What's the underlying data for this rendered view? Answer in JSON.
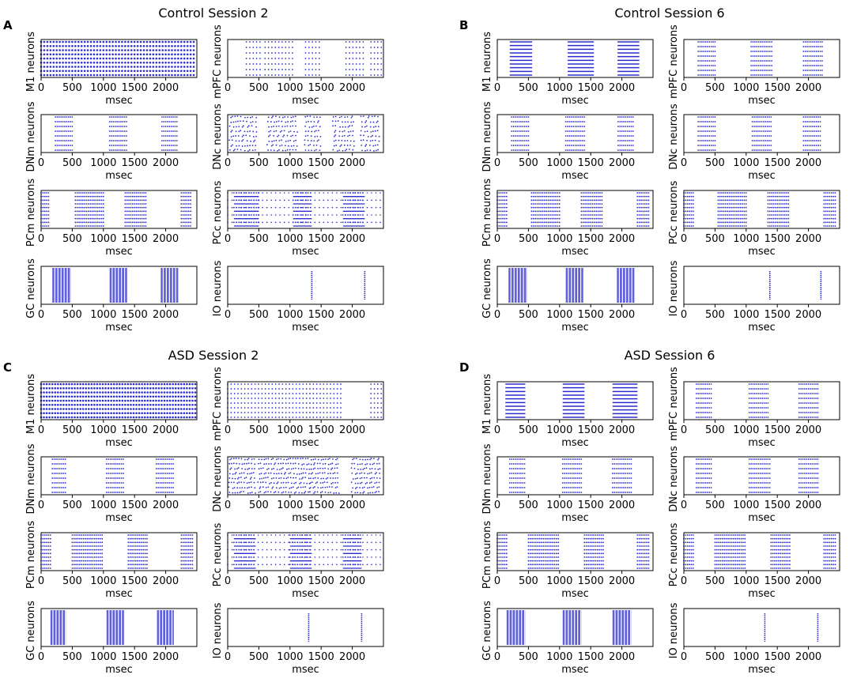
{
  "figure": {
    "panels": [
      {
        "letter": "A",
        "title": "Control Session 2"
      },
      {
        "letter": "B",
        "title": "Control Session 6"
      },
      {
        "letter": "C",
        "title": "ASD Session 2"
      },
      {
        "letter": "D",
        "title": "ASD Session 6"
      }
    ],
    "spike_color": "#2b2bcf"
  },
  "chart_data": [
    {
      "panel": "A",
      "title": "Control Session 2",
      "type": "raster",
      "xlabel": "msec",
      "xlim": [
        0,
        2500
      ],
      "xticks": [
        0,
        500,
        1000,
        1500,
        2000
      ],
      "subplots": [
        {
          "ylabel": "M1 neurons",
          "rows": 9,
          "mode": "dense",
          "dx": 50,
          "bursts": [
            [
              0,
              2480
            ]
          ]
        },
        {
          "ylabel": "mPFC neurons",
          "rows": 7,
          "mode": "dots",
          "dx": 55,
          "bursts": [
            [
              300,
              550
            ],
            [
              600,
              1050
            ],
            [
              1250,
              1500
            ],
            [
              1900,
              2200
            ],
            [
              2300,
              2480
            ]
          ]
        },
        {
          "ylabel": "DNm neurons",
          "rows": 8,
          "mode": "dots",
          "dx": 30,
          "bursts": [
            [
              230,
              500
            ],
            [
              1100,
              1380
            ],
            [
              1940,
              2200
            ]
          ]
        },
        {
          "ylabel": "DNc neurons",
          "rows": 8,
          "mode": "scatter",
          "dx": 45,
          "bursts": [
            [
              40,
              450
            ],
            [
              650,
              1100
            ],
            [
              1250,
              1500
            ],
            [
              1700,
              2050
            ],
            [
              2150,
              2450
            ]
          ]
        },
        {
          "ylabel": "PCm neurons",
          "rows": 10,
          "mode": "dots",
          "dx": 30,
          "bursts": [
            [
              0,
              130
            ],
            [
              550,
              1000
            ],
            [
              1350,
              1700
            ],
            [
              2250,
              2400
            ]
          ]
        },
        {
          "ylabel": "PCc neurons",
          "rows": 10,
          "mode": "mixed",
          "dx": 40,
          "bursts": [
            [
              100,
              500
            ],
            [
              1050,
              1350
            ],
            [
              1850,
              2200
            ]
          ]
        },
        {
          "ylabel": "GC neurons",
          "rows": 1,
          "mode": "bars",
          "bursts": [
            [
              180,
              480
            ],
            [
              1100,
              1380
            ],
            [
              1920,
              2200
            ]
          ]
        },
        {
          "ylabel": "IO neurons",
          "rows": 1,
          "mode": "vlines",
          "lines": [
            1350,
            2200
          ]
        }
      ]
    },
    {
      "panel": "B",
      "title": "Control Session 6",
      "type": "raster",
      "xlabel": "msec",
      "xlim": [
        0,
        2500
      ],
      "xticks": [
        0,
        500,
        1000,
        1500,
        2000
      ],
      "subplots": [
        {
          "ylabel": "M1 neurons",
          "rows": 10,
          "mode": "lines",
          "bursts": [
            [
              200,
              560
            ],
            [
              1130,
              1550
            ],
            [
              1930,
              2280
            ]
          ]
        },
        {
          "ylabel": "mPFC neurons",
          "rows": 8,
          "mode": "dots",
          "dx": 30,
          "bursts": [
            [
              230,
              500
            ],
            [
              1080,
              1420
            ],
            [
              1920,
              2220
            ]
          ]
        },
        {
          "ylabel": "DNm neurons",
          "rows": 8,
          "mode": "dots",
          "dx": 30,
          "bursts": [
            [
              230,
              500
            ],
            [
              1100,
              1400
            ],
            [
              1940,
              2200
            ]
          ]
        },
        {
          "ylabel": "DNc neurons",
          "rows": 8,
          "mode": "dots",
          "dx": 30,
          "bursts": [
            [
              230,
              500
            ],
            [
              1100,
              1420
            ],
            [
              1920,
              2200
            ]
          ]
        },
        {
          "ylabel": "PCm neurons",
          "rows": 10,
          "mode": "dots",
          "dx": 30,
          "bursts": [
            [
              0,
              150
            ],
            [
              550,
              1000
            ],
            [
              1350,
              1700
            ],
            [
              2250,
              2450
            ]
          ]
        },
        {
          "ylabel": "PCc neurons",
          "rows": 10,
          "mode": "dots",
          "dx": 30,
          "bursts": [
            [
              0,
              150
            ],
            [
              550,
              1000
            ],
            [
              1350,
              1700
            ],
            [
              2250,
              2450
            ]
          ]
        },
        {
          "ylabel": "GC neurons",
          "rows": 1,
          "mode": "bars",
          "bursts": [
            [
              180,
              480
            ],
            [
              1100,
              1380
            ],
            [
              1920,
              2200
            ]
          ]
        },
        {
          "ylabel": "IO neurons",
          "rows": 1,
          "mode": "vlines",
          "lines": [
            1380,
            2200
          ]
        }
      ]
    },
    {
      "panel": "C",
      "title": "ASD Session 2",
      "type": "raster",
      "xlabel": "msec",
      "xlim": [
        0,
        2500
      ],
      "xticks": [
        0,
        500,
        1000,
        1500,
        2000
      ],
      "subplots": [
        {
          "ylabel": "M1 neurons",
          "rows": 9,
          "mode": "dense",
          "dx": 45,
          "bursts": [
            [
              0,
              2480
            ]
          ]
        },
        {
          "ylabel": "mPFC neurons",
          "rows": 8,
          "mode": "dots",
          "dx": 55,
          "bursts": [
            [
              0,
              1850
            ],
            [
              2300,
              2480
            ]
          ]
        },
        {
          "ylabel": "DNm neurons",
          "rows": 8,
          "mode": "dots",
          "dx": 30,
          "bursts": [
            [
              180,
              400
            ],
            [
              1050,
              1330
            ],
            [
              1850,
              2130
            ]
          ]
        },
        {
          "ylabel": "DNc neurons",
          "rows": 8,
          "mode": "scatter",
          "dx": 40,
          "bursts": [
            [
              30,
              450
            ],
            [
              500,
              1300
            ],
            [
              1330,
              1800
            ],
            [
              2000,
              2450
            ]
          ]
        },
        {
          "ylabel": "PCm neurons",
          "rows": 10,
          "mode": "dots",
          "dx": 30,
          "bursts": [
            [
              0,
              150
            ],
            [
              500,
              1000
            ],
            [
              1400,
              1700
            ],
            [
              2250,
              2450
            ]
          ]
        },
        {
          "ylabel": "PCc neurons",
          "rows": 10,
          "mode": "mixed",
          "dx": 40,
          "bursts": [
            [
              100,
              450
            ],
            [
              1000,
              1350
            ],
            [
              1850,
              2150
            ]
          ]
        },
        {
          "ylabel": "GC neurons",
          "rows": 1,
          "mode": "bars",
          "bursts": [
            [
              150,
              400
            ],
            [
              1050,
              1330
            ],
            [
              1860,
              2130
            ]
          ]
        },
        {
          "ylabel": "IO neurons",
          "rows": 1,
          "mode": "vlines",
          "lines": [
            1300,
            2150
          ]
        }
      ]
    },
    {
      "panel": "D",
      "title": "ASD Session 6",
      "type": "raster",
      "xlabel": "msec",
      "xlim": [
        0,
        2500
      ],
      "xticks": [
        0,
        500,
        1000,
        1500,
        2000
      ],
      "subplots": [
        {
          "ylabel": "M1 neurons",
          "rows": 10,
          "mode": "lines",
          "bursts": [
            [
              130,
              450
            ],
            [
              1050,
              1400
            ],
            [
              1850,
              2250
            ]
          ]
        },
        {
          "ylabel": "mPFC neurons",
          "rows": 8,
          "mode": "dots",
          "dx": 30,
          "bursts": [
            [
              200,
              450
            ],
            [
              1050,
              1350
            ],
            [
              1850,
              2150
            ]
          ]
        },
        {
          "ylabel": "DNm neurons",
          "rows": 8,
          "mode": "dots",
          "dx": 30,
          "bursts": [
            [
              200,
              450
            ],
            [
              1050,
              1350
            ],
            [
              1850,
              2150
            ]
          ]
        },
        {
          "ylabel": "DNc neurons",
          "rows": 8,
          "mode": "dots",
          "dx": 30,
          "bursts": [
            [
              200,
              450
            ],
            [
              1050,
              1380
            ],
            [
              1850,
              2150
            ]
          ]
        },
        {
          "ylabel": "PCm neurons",
          "rows": 10,
          "mode": "dots",
          "dx": 30,
          "bursts": [
            [
              0,
              150
            ],
            [
              500,
              1000
            ],
            [
              1400,
              1700
            ],
            [
              2250,
              2450
            ]
          ]
        },
        {
          "ylabel": "PCc neurons",
          "rows": 10,
          "mode": "dots",
          "dx": 30,
          "bursts": [
            [
              0,
              150
            ],
            [
              500,
              1000
            ],
            [
              1400,
              1700
            ],
            [
              2250,
              2450
            ]
          ]
        },
        {
          "ylabel": "GC neurons",
          "rows": 1,
          "mode": "bars",
          "bursts": [
            [
              150,
              450
            ],
            [
              1050,
              1350
            ],
            [
              1850,
              2150
            ]
          ]
        },
        {
          "ylabel": "IO neurons",
          "rows": 1,
          "mode": "vlines",
          "lines": [
            1300,
            2150
          ]
        }
      ]
    }
  ]
}
